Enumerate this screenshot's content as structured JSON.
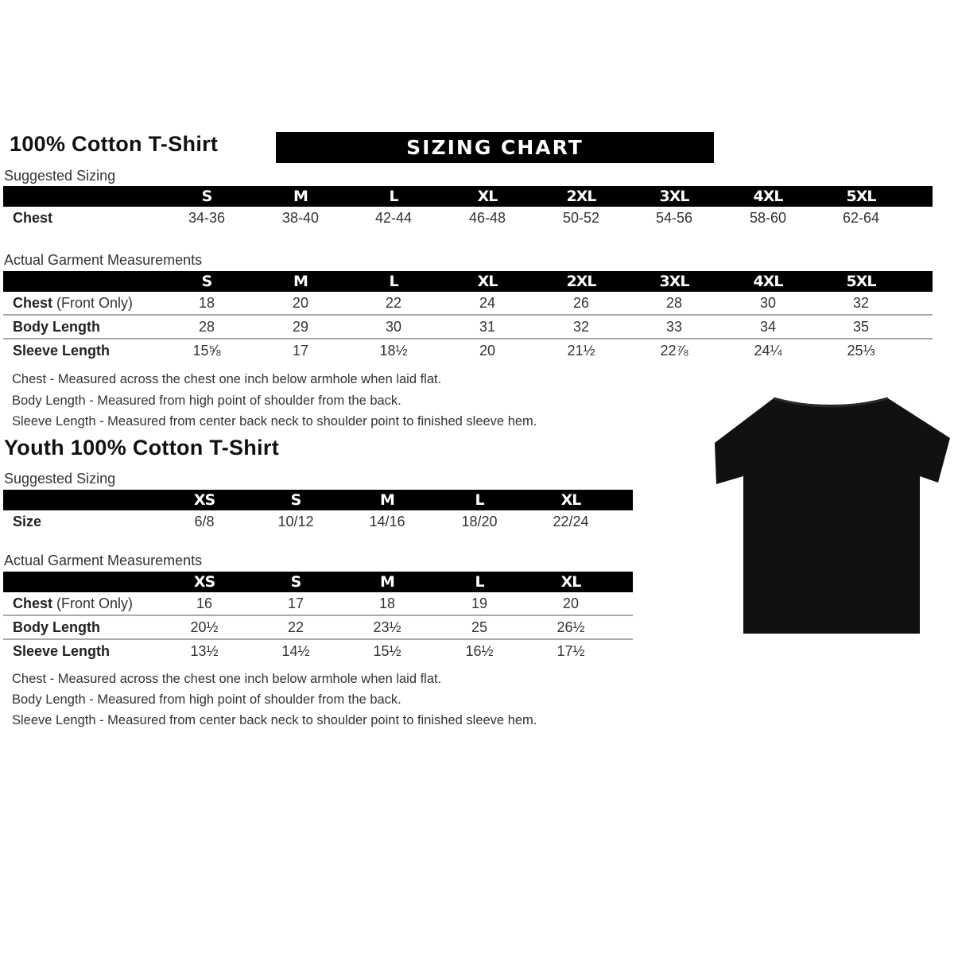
{
  "adult": {
    "title": "100% Cotton T-Shirt",
    "banner": "SIZING CHART",
    "suggested": {
      "label": "Suggested Sizing",
      "sizes": [
        "S",
        "M",
        "L",
        "XL",
        "2XL",
        "3XL",
        "4XL",
        "5XL"
      ],
      "rows": [
        {
          "label": "Chest",
          "values": [
            "34-36",
            "38-40",
            "42-44",
            "46-48",
            "50-52",
            "54-56",
            "58-60",
            "62-64"
          ]
        }
      ]
    },
    "actual": {
      "label": "Actual Garment Measurements",
      "sizes": [
        "S",
        "M",
        "L",
        "XL",
        "2XL",
        "3XL",
        "4XL",
        "5XL"
      ],
      "rows": [
        {
          "label": "Chest",
          "label_suffix": " (Front Only)",
          "values": [
            "18",
            "20",
            "22",
            "24",
            "26",
            "28",
            "30",
            "32"
          ]
        },
        {
          "label": "Body Length",
          "values": [
            "28",
            "29",
            "30",
            "31",
            "32",
            "33",
            "34",
            "35"
          ]
        },
        {
          "label": "Sleeve Length",
          "values": [
            "15⅝",
            "17",
            "18½",
            "20",
            "21½",
            "22⅞",
            "24¼",
            "25⅓"
          ]
        }
      ]
    },
    "notes": [
      "Chest - Measured across the chest one inch below armhole when laid flat.",
      "Body Length - Measured from high point of shoulder from the back.",
      "Sleeve Length - Measured from center back neck to shoulder point to finished sleeve hem."
    ]
  },
  "youth": {
    "title": "Youth 100% Cotton T-Shirt",
    "suggested": {
      "label": "Suggested Sizing",
      "sizes": [
        "XS",
        "S",
        "M",
        "L",
        "XL"
      ],
      "rows": [
        {
          "label": "Size",
          "values": [
            "6/8",
            "10/12",
            "14/16",
            "18/20",
            "22/24"
          ]
        }
      ]
    },
    "actual": {
      "label": "Actual Garment Measurements",
      "sizes": [
        "XS",
        "S",
        "M",
        "L",
        "XL"
      ],
      "rows": [
        {
          "label": "Chest",
          "label_suffix": " (Front Only)",
          "values": [
            "16",
            "17",
            "18",
            "19",
            "20"
          ]
        },
        {
          "label": "Body Length",
          "values": [
            "20½",
            "22",
            "23½",
            "25",
            "26½"
          ]
        },
        {
          "label": "Sleeve Length",
          "values": [
            "13½",
            "14½",
            "15½",
            "16½",
            "17½"
          ]
        }
      ]
    },
    "notes": [
      "Chest - Measured across the chest one inch below armhole when laid flat.",
      "Body Length - Measured from high point of shoulder from the back.",
      "Sleeve Length - Measured from center back neck to shoulder point to finished sleeve hem."
    ]
  },
  "image": {
    "icon": "tshirt-icon",
    "color": "#111111"
  }
}
